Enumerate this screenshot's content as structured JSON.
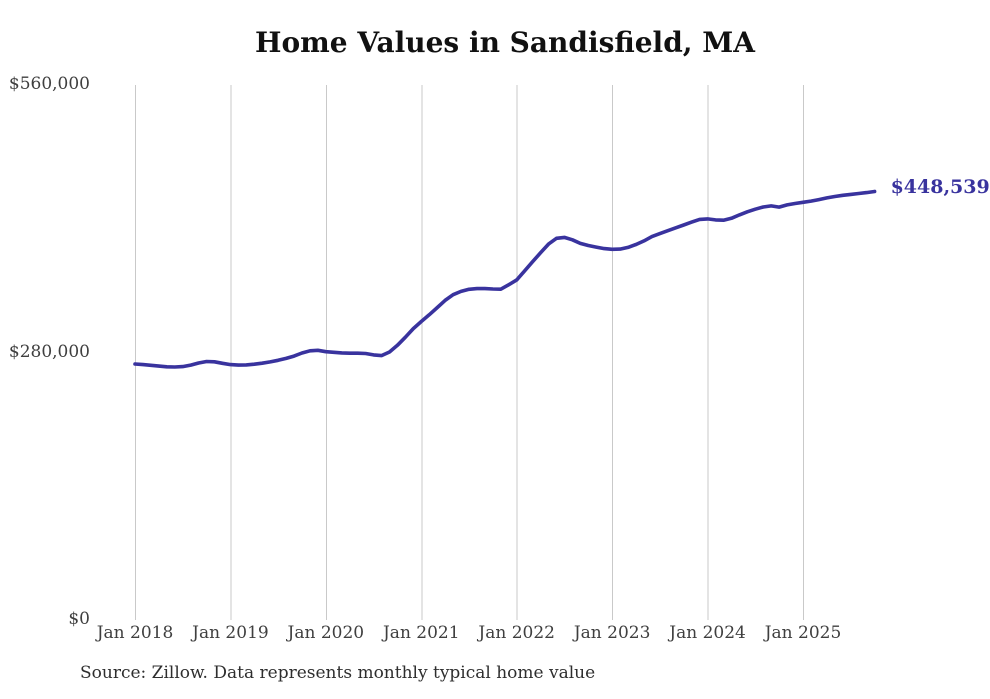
{
  "title": "Home Values in Sandisfield, MA",
  "source_note": "Source: Zillow. Data represents monthly typical home value",
  "chart_data": {
    "type": "line",
    "title": "Home Values in Sandisfield, MA",
    "xlabel": "",
    "ylabel": "",
    "y_range": [
      0,
      560000
    ],
    "y_ticks": [
      {
        "value": 560000,
        "label": "$560,000"
      },
      {
        "value": 280000,
        "label": "$280,000"
      },
      {
        "value": 0,
        "label": "$0"
      }
    ],
    "x_ticks": [
      {
        "month_index": 0,
        "label": "Jan 2018"
      },
      {
        "month_index": 12,
        "label": "Jan 2019"
      },
      {
        "month_index": 24,
        "label": "Jan 2020"
      },
      {
        "month_index": 36,
        "label": "Jan 2021"
      },
      {
        "month_index": 48,
        "label": "Jan 2022"
      },
      {
        "month_index": 60,
        "label": "Jan 2023"
      },
      {
        "month_index": 72,
        "label": "Jan 2024"
      },
      {
        "month_index": 84,
        "label": "Jan 2025"
      }
    ],
    "grid": "vertical-only",
    "legend": "none",
    "line_color": "#39339e",
    "grid_color": "#c9c9c9",
    "end_value": 448539,
    "end_label": "$448,539",
    "series": [
      {
        "name": "Monthly typical home value",
        "frequency": "monthly",
        "start_month": "Jan 2018",
        "end_month": "Oct 2025",
        "values": [
          268000,
          267300,
          266600,
          265800,
          265000,
          264800,
          265200,
          266800,
          269000,
          270600,
          270300,
          268700,
          267300,
          266800,
          267000,
          267800,
          268800,
          270200,
          271800,
          273800,
          276200,
          279500,
          281800,
          282300,
          280800,
          280200,
          279600,
          279300,
          279300,
          279000,
          277500,
          276800,
          280500,
          287500,
          296000,
          305000,
          312500,
          319500,
          327000,
          334500,
          340500,
          344000,
          346200,
          346900,
          346900,
          346500,
          346300,
          351000,
          356000,
          365500,
          375000,
          384500,
          393500,
          399500,
          400500,
          398000,
          394200,
          392000,
          390300,
          388800,
          388000,
          388200,
          390000,
          393000,
          396800,
          401300,
          404500,
          407500,
          410500,
          413500,
          416500,
          419300,
          419800,
          418800,
          418500,
          420500,
          424000,
          427300,
          430000,
          432300,
          433500,
          432200,
          434500,
          436000,
          437200,
          438500,
          440000,
          441800,
          443300,
          444500,
          445500,
          446400,
          447400,
          448539
        ]
      }
    ]
  }
}
